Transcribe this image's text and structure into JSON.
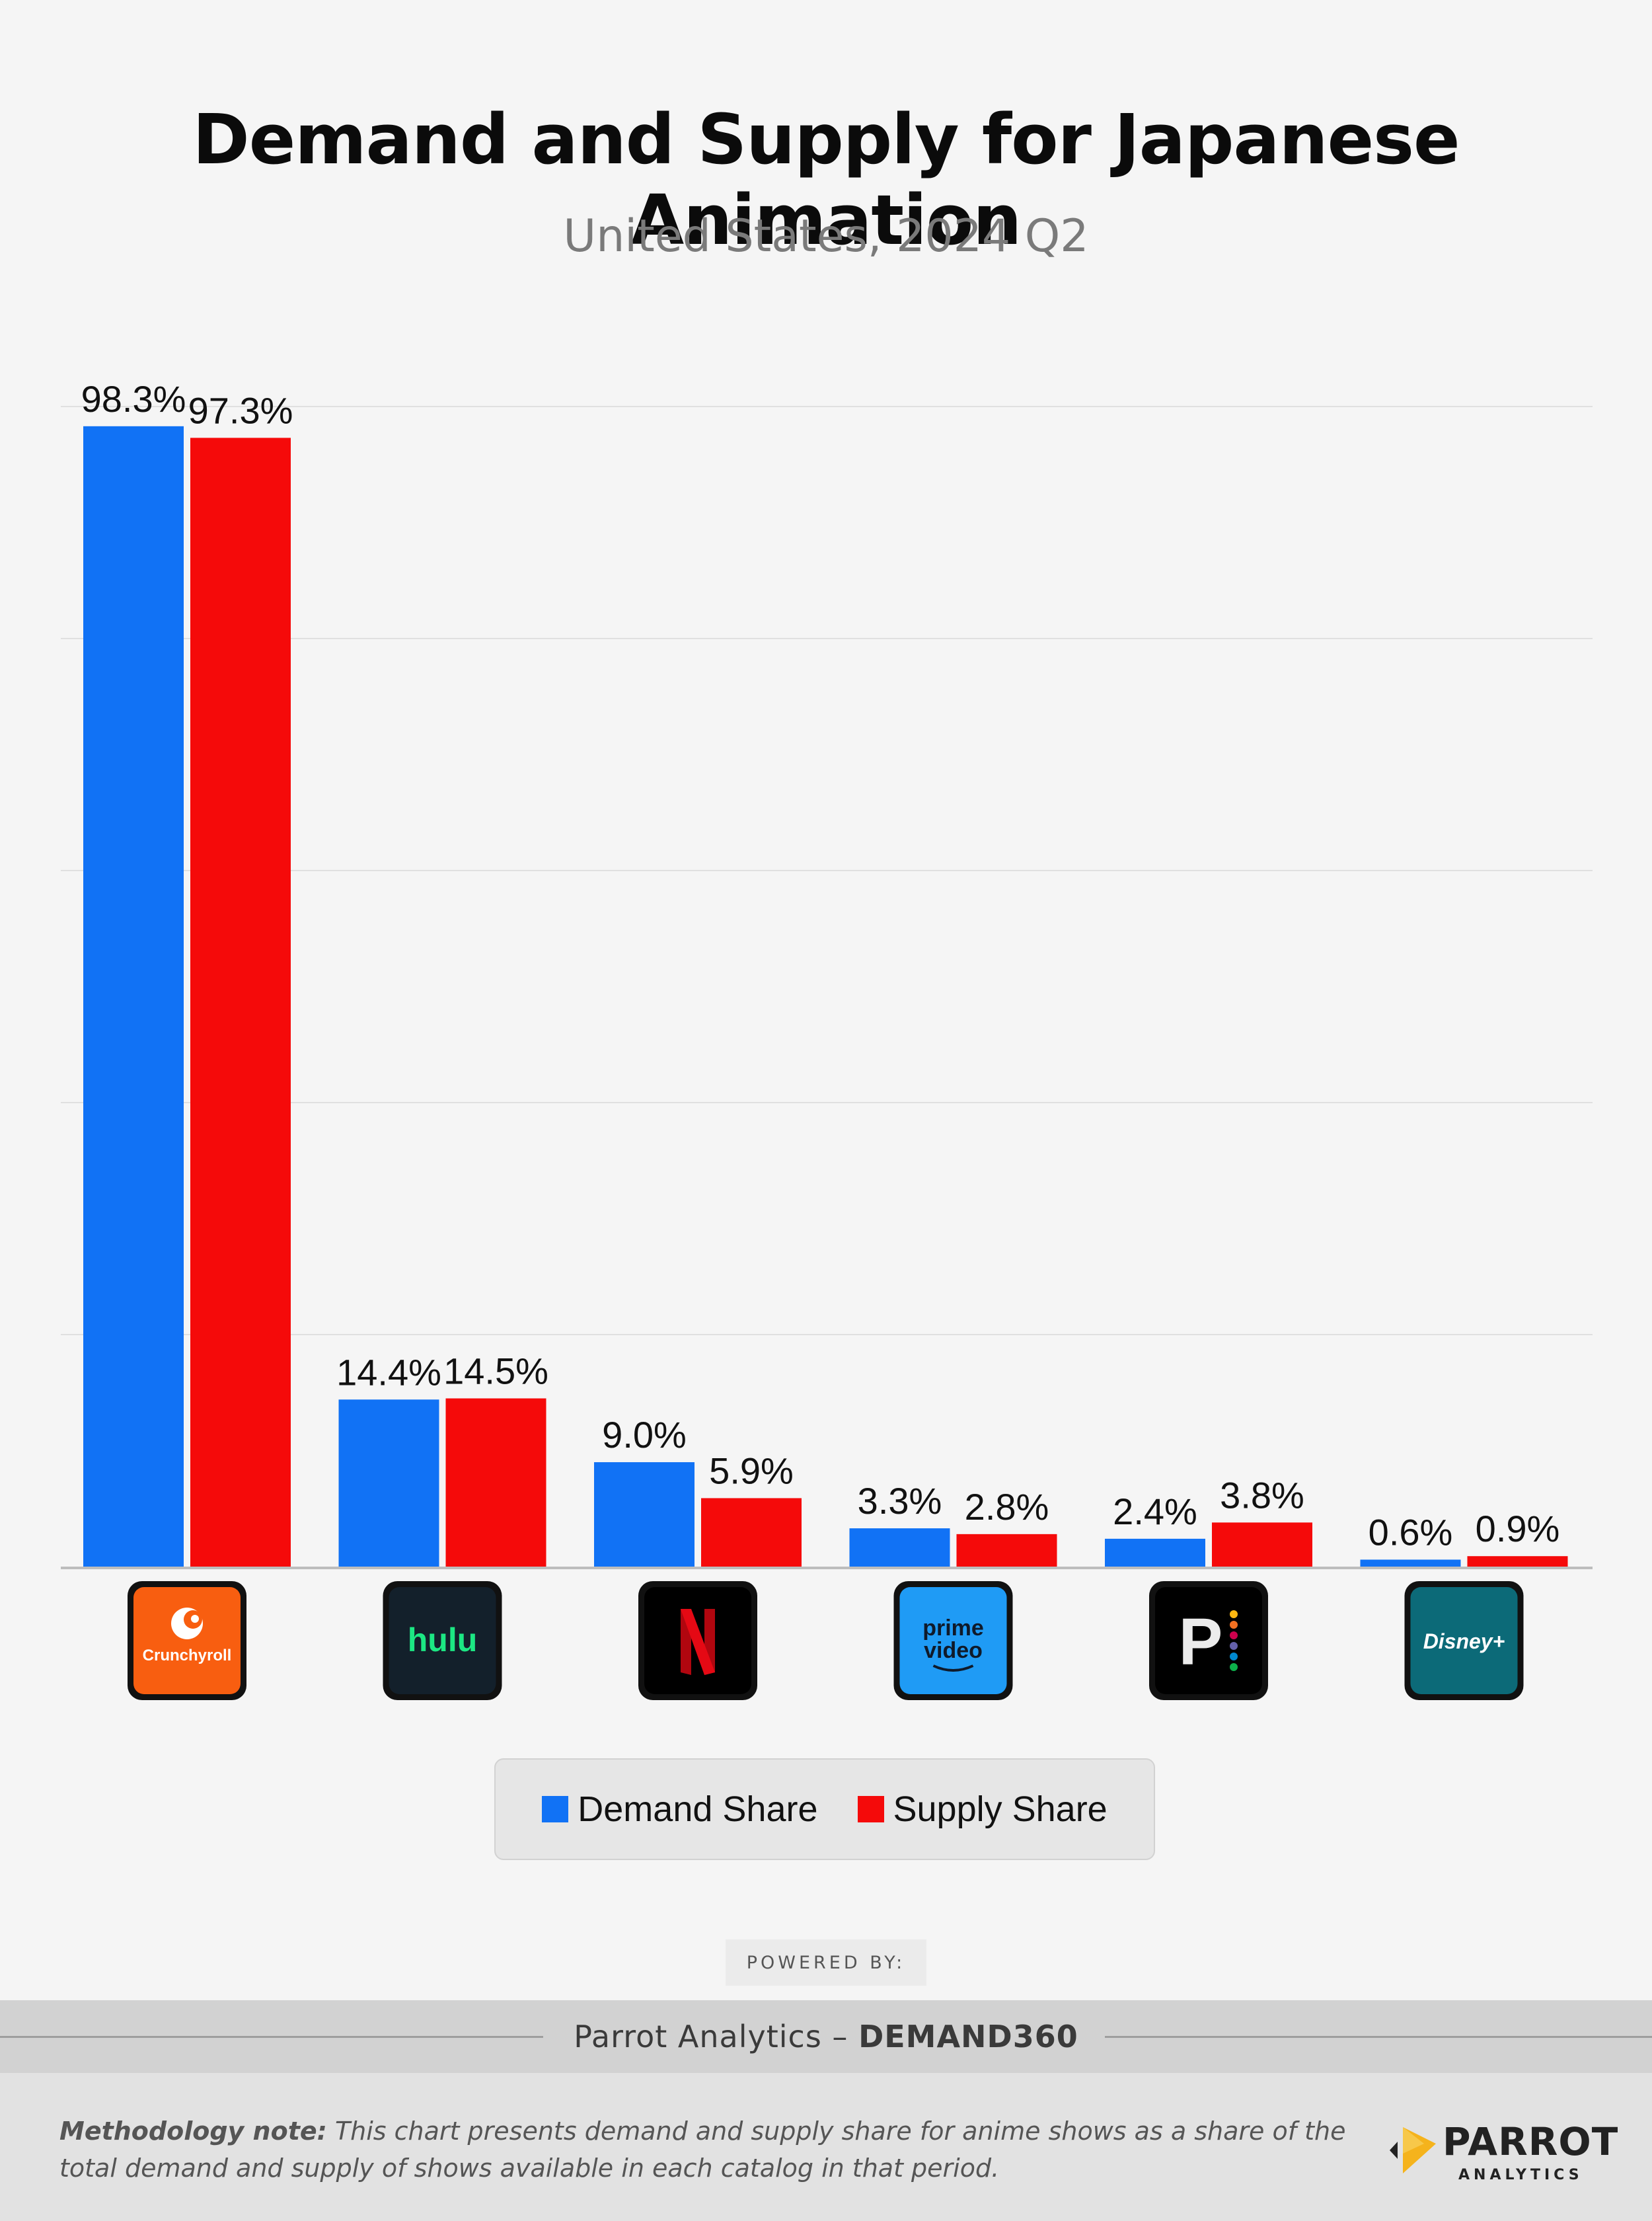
{
  "header": {
    "title": "Demand and Supply for Japanese Animation",
    "subtitle": "United States, 2024 Q2"
  },
  "chart_data": {
    "type": "bar",
    "title": "Demand and Supply for Japanese Animation",
    "subtitle": "United States, 2024 Q2",
    "categories": [
      "Crunchyroll",
      "hulu",
      "Netflix",
      "prime video",
      "Peacock",
      "Disney+"
    ],
    "series": [
      {
        "name": "Demand Share",
        "values": [
          98.3,
          14.4,
          9.0,
          3.3,
          2.4,
          0.6
        ],
        "labels": [
          "98.3%",
          "14.4%",
          "9.0%",
          "3.3%",
          "2.4%",
          "0.6%"
        ],
        "color": "#1172f5"
      },
      {
        "name": "Supply Share",
        "values": [
          97.3,
          14.5,
          5.9,
          2.8,
          3.8,
          0.9
        ],
        "labels": [
          "97.3%",
          "14.5%",
          "5.9%",
          "2.8%",
          "3.8%",
          "0.9%"
        ],
        "color": "#f50a0a"
      }
    ],
    "ylim": [
      0,
      100
    ],
    "grid": true,
    "legend": "bottom-center",
    "logos": [
      {
        "name": "crunchyroll-logo-icon",
        "text": "Crunchyroll",
        "bg": "#f85e10"
      },
      {
        "name": "hulu-logo-icon",
        "text": "hulu",
        "bg": "#13202b"
      },
      {
        "name": "netflix-logo-icon",
        "text": "N",
        "bg": "#000000"
      },
      {
        "name": "prime-video-logo-icon",
        "text": "prime video",
        "bg": "#1f9bf5"
      },
      {
        "name": "peacock-logo-icon",
        "text": "P",
        "bg": "#000000"
      },
      {
        "name": "disney-plus-logo-icon",
        "text": "Disney+",
        "bg": "#0c6a78"
      }
    ]
  },
  "legend": {
    "demand_label": "Demand Share",
    "supply_label": "Supply Share",
    "demand_color": "#1172f5",
    "supply_color": "#f50a0a"
  },
  "powered_by": "POWERED BY:",
  "source": {
    "name": "Parrot Analytics",
    "separator": " – ",
    "product": "DEMAND360"
  },
  "footer": {
    "note_label": "Methodology note:",
    "note_text": " This chart presents demand and supply share for anime shows as a share of the total demand and supply of shows available in each catalog in that period.",
    "brand_name": "PARROT",
    "brand_sub": "ANALYTICS"
  }
}
